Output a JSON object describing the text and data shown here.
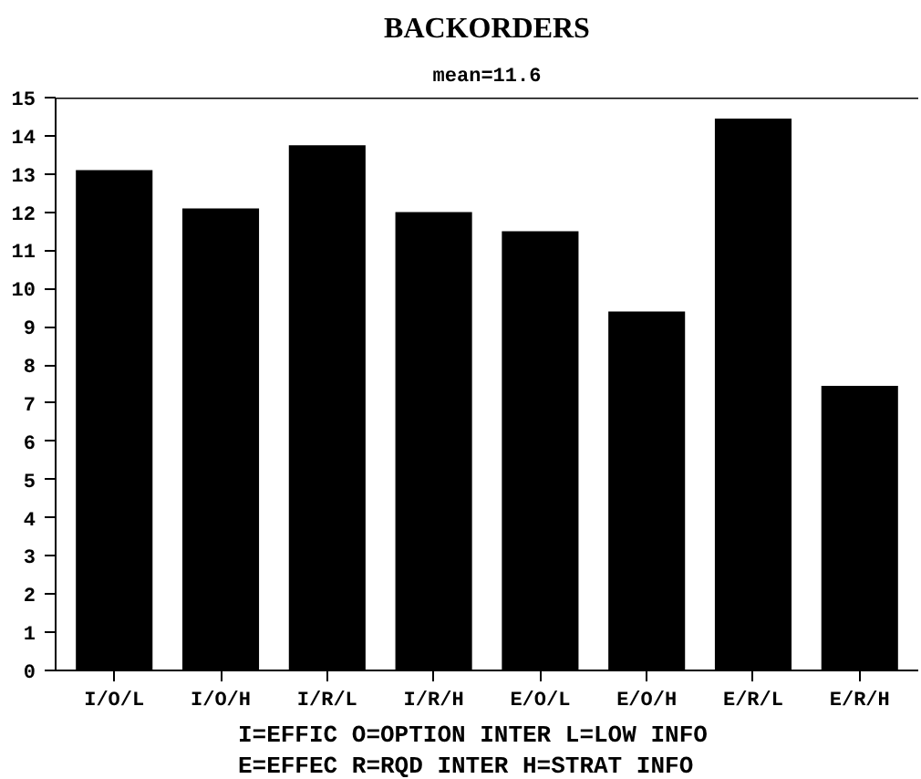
{
  "chart_data": {
    "type": "bar",
    "title": "BACKORDERS",
    "subtitle": "mean=11.6",
    "categories": [
      "I/O/L",
      "I/O/H",
      "I/R/L",
      "I/R/H",
      "E/O/L",
      "E/O/H",
      "E/R/L",
      "E/R/H"
    ],
    "values": [
      13.1,
      12.1,
      13.75,
      12.0,
      11.5,
      9.4,
      14.45,
      7.45
    ],
    "color": "#000000",
    "ylim": [
      0,
      15
    ],
    "yticks": [
      0,
      1,
      2,
      3,
      4,
      5,
      6,
      7,
      8,
      9,
      10,
      11,
      12,
      13,
      14,
      15
    ],
    "grid": false,
    "annotations": [
      "I=EFFIC  O=OPTION INTER  L=LOW INFO",
      "E=EFFEC  R=RQD INTER   H=STRAT INFO"
    ]
  }
}
